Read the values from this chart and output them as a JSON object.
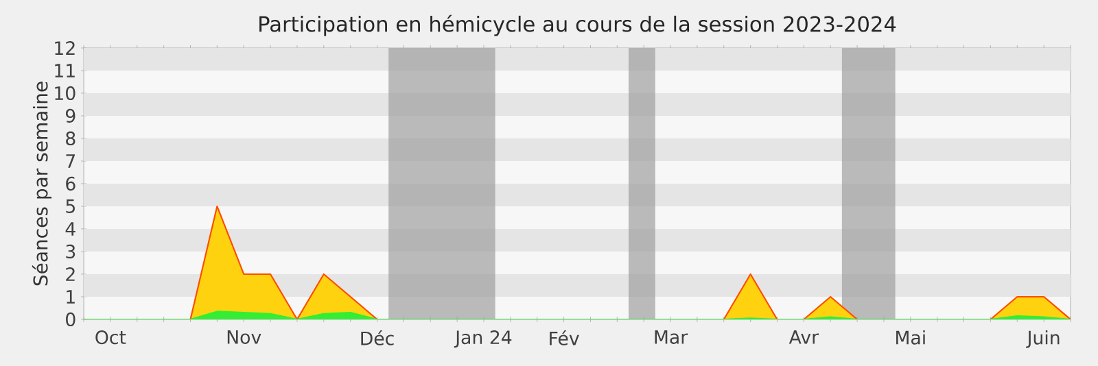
{
  "chart_data": {
    "type": "area",
    "title": "Participation en hémicycle au cours de la session 2023-2024",
    "ylabel": "Séances par semaine",
    "x": [
      "2023-10-02",
      "2023-10-09",
      "2023-10-16",
      "2023-10-23",
      "2023-10-30",
      "2023-11-06",
      "2023-11-13",
      "2023-11-20",
      "2023-11-27",
      "2023-12-04",
      "2023-12-11",
      "2023-12-18",
      "2023-12-25",
      "2024-01-01",
      "2024-01-08",
      "2024-01-15",
      "2024-01-22",
      "2024-01-29",
      "2024-02-05",
      "2024-02-12",
      "2024-02-19",
      "2024-02-26",
      "2024-03-04",
      "2024-03-11",
      "2024-03-18",
      "2024-03-25",
      "2024-04-01",
      "2024-04-08",
      "2024-04-15",
      "2024-04-22",
      "2024-04-29",
      "2024-05-06",
      "2024-05-13",
      "2024-05-20",
      "2024-05-27",
      "2024-06-03",
      "2024-06-10",
      "2024-06-17"
    ],
    "series": [
      {
        "color": "#ffd20f",
        "values": [
          0,
          0,
          0,
          0,
          0,
          5,
          2,
          2,
          0,
          2,
          1,
          0,
          0,
          0,
          0,
          0,
          0,
          0,
          0,
          0,
          0,
          0,
          0,
          0,
          0,
          2,
          0,
          0,
          1,
          0,
          0,
          0,
          0,
          0,
          0,
          1,
          1,
          0
        ]
      },
      {
        "color": "#33ee33",
        "values": [
          0,
          0,
          0,
          0,
          0,
          0.35,
          0.3,
          0.25,
          0,
          0.25,
          0.3,
          0,
          0,
          0,
          0,
          0,
          0,
          0,
          0,
          0,
          0,
          0,
          0,
          0,
          0,
          0.05,
          0,
          0,
          0.1,
          0,
          0,
          0,
          0,
          0,
          0,
          0.15,
          0.1,
          0
        ]
      }
    ],
    "xlim": [
      "2023-10-02",
      "2024-06-17"
    ],
    "xticks": [
      {
        "value": "2023-10-02",
        "label": null
      },
      {
        "value": "2023-10-09",
        "label": "Oct"
      },
      {
        "value": "2023-10-16",
        "label": null
      },
      {
        "value": "2023-10-23",
        "label": null
      },
      {
        "value": "2023-10-30",
        "label": null
      },
      {
        "value": "2023-11-06",
        "label": null
      },
      {
        "value": "2023-11-13",
        "label": "Nov"
      },
      {
        "value": "2023-11-20",
        "label": null
      },
      {
        "value": "2023-11-27",
        "label": null
      },
      {
        "value": "2023-12-04",
        "label": null
      },
      {
        "value": "2023-12-11",
        "label": null
      },
      {
        "value": "2023-12-18",
        "label": "Déc"
      },
      {
        "value": "2023-12-25",
        "label": null
      },
      {
        "value": "2024-01-01",
        "label": null
      },
      {
        "value": "2024-01-08",
        "label": null
      },
      {
        "value": "2024-01-15",
        "label": "Jan 24"
      },
      {
        "value": "2024-01-22",
        "label": null
      },
      {
        "value": "2024-01-29",
        "label": null
      },
      {
        "value": "2024-02-05",
        "label": "Fév"
      },
      {
        "value": "2024-02-12",
        "label": null
      },
      {
        "value": "2024-02-19",
        "label": null
      },
      {
        "value": "2024-02-26",
        "label": null
      },
      {
        "value": "2024-03-04",
        "label": "Mar"
      },
      {
        "value": "2024-03-11",
        "label": null
      },
      {
        "value": "2024-03-18",
        "label": null
      },
      {
        "value": "2024-03-25",
        "label": null
      },
      {
        "value": "2024-04-01",
        "label": null
      },
      {
        "value": "2024-04-08",
        "label": "Avr"
      },
      {
        "value": "2024-04-15",
        "label": null
      },
      {
        "value": "2024-04-22",
        "label": null
      },
      {
        "value": "2024-04-29",
        "label": null
      },
      {
        "value": "2024-05-06",
        "label": "Mai"
      },
      {
        "value": "2024-05-13",
        "label": null
      },
      {
        "value": "2024-05-20",
        "label": null
      },
      {
        "value": "2024-05-27",
        "label": null
      },
      {
        "value": "2024-06-03",
        "label": null
      },
      {
        "value": "2024-06-10",
        "label": "Juin"
      },
      {
        "value": "2024-06-17",
        "label": null
      }
    ],
    "ylim": [
      0,
      12
    ],
    "yticks": [
      0,
      1,
      2,
      3,
      4,
      5,
      6,
      7,
      8,
      9,
      10,
      11,
      12
    ],
    "bands": [
      {
        "axis": "x",
        "from": "2023-12-21",
        "to": "2024-01-18",
        "color": "#a0a0a0"
      },
      {
        "axis": "x",
        "from": "2024-02-22",
        "to": "2024-02-29",
        "color": "#a0a0a0"
      },
      {
        "axis": "x",
        "from": "2024-04-18",
        "to": "2024-05-02",
        "color": "#a0a0a0"
      }
    ]
  }
}
